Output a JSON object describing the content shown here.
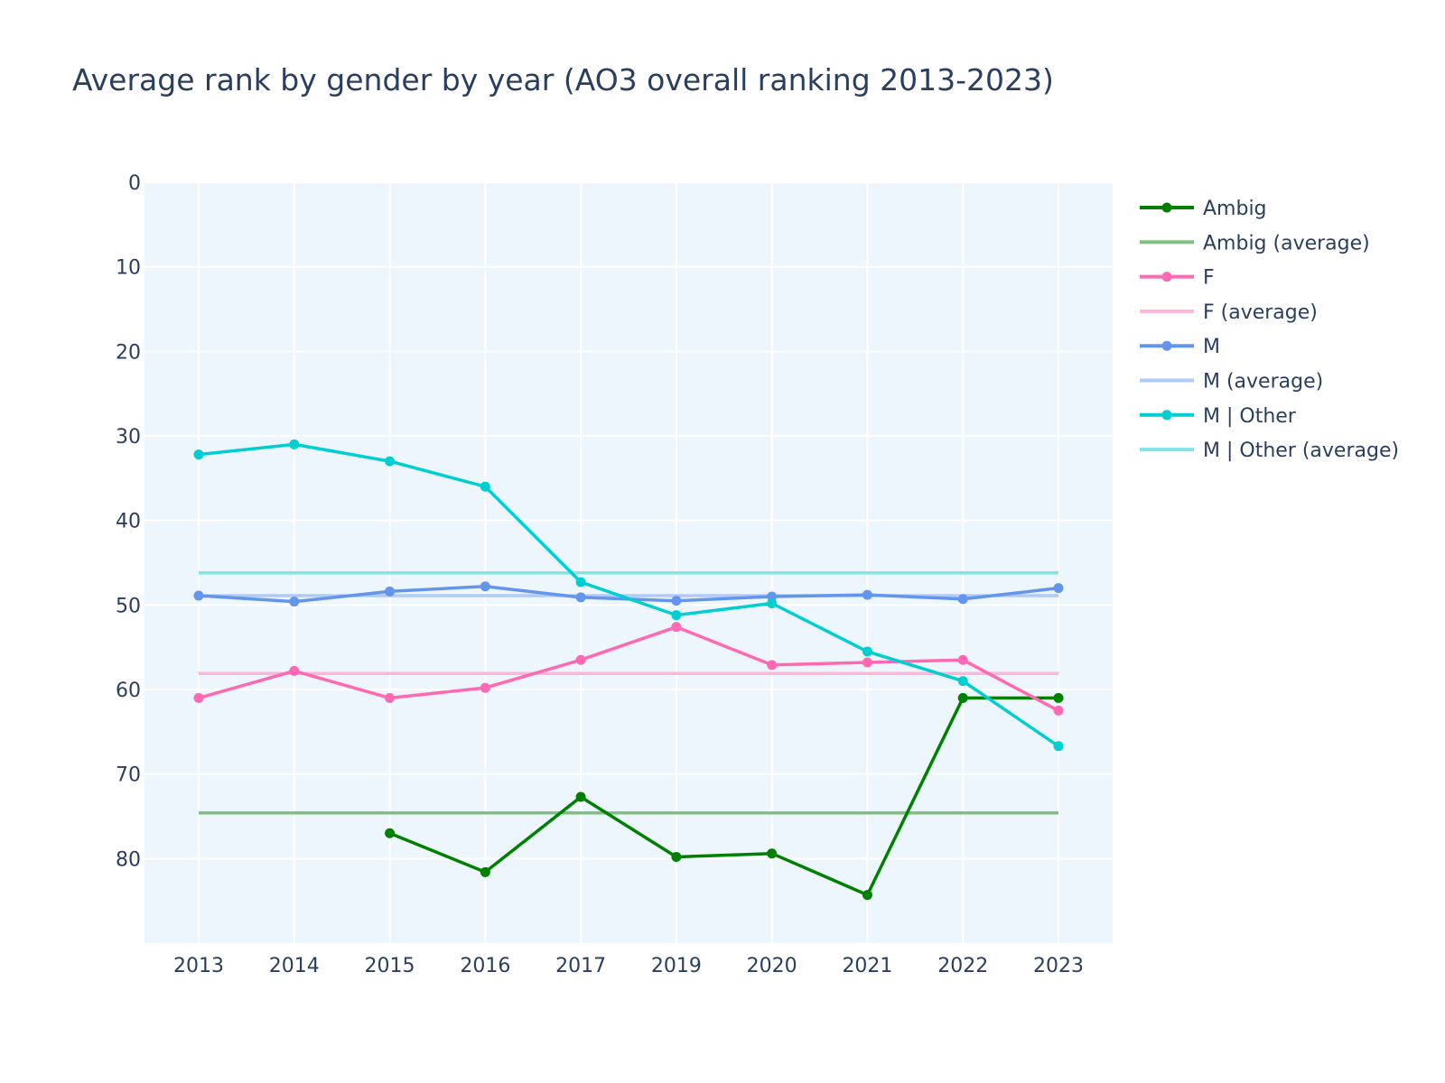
{
  "chart_data": {
    "type": "line",
    "title": "Average rank by gender by year (AO3 overall ranking 2013-2023)",
    "xlabel": "",
    "ylabel": "",
    "categories": [
      "2013",
      "2014",
      "2015",
      "2016",
      "2017",
      "2019",
      "2020",
      "2021",
      "2022",
      "2023"
    ],
    "y_reversed": true,
    "ylim": [
      90,
      0
    ],
    "y_ticks": [
      0,
      10,
      20,
      30,
      40,
      50,
      60,
      70,
      80
    ],
    "grid": true,
    "legend_position": "right",
    "plot_background": "#eef6fd",
    "series": [
      {
        "name": "Ambig",
        "color": "#008000",
        "mode": "lines+markers",
        "values": [
          null,
          null,
          77.0,
          81.6,
          72.7,
          79.8,
          79.4,
          84.3,
          61.0,
          61.0
        ]
      },
      {
        "name": "Ambig (average)",
        "color": "#7fbf7f",
        "mode": "lines",
        "values": [
          74.6,
          74.6,
          74.6,
          74.6,
          74.6,
          74.6,
          74.6,
          74.6,
          74.6,
          74.6
        ]
      },
      {
        "name": "F",
        "color": "#ff69b4",
        "mode": "lines+markers",
        "values": [
          61.0,
          57.8,
          61.0,
          59.8,
          56.5,
          52.6,
          57.1,
          56.8,
          56.5,
          62.5
        ]
      },
      {
        "name": "F (average)",
        "color": "#ffb4da",
        "mode": "lines",
        "values": [
          58.1,
          58.1,
          58.1,
          58.1,
          58.1,
          58.1,
          58.1,
          58.1,
          58.1,
          58.1
        ]
      },
      {
        "name": "M",
        "color": "#6495ed",
        "mode": "lines+markers",
        "values": [
          48.9,
          49.6,
          48.4,
          47.8,
          49.1,
          49.5,
          49.0,
          48.8,
          49.3,
          48.0
        ]
      },
      {
        "name": "M (average)",
        "color": "#b1caf6",
        "mode": "lines",
        "values": [
          48.9,
          48.9,
          48.9,
          48.9,
          48.9,
          48.9,
          48.9,
          48.9,
          48.9,
          48.9
        ]
      },
      {
        "name": "M | Other",
        "color": "#00ced1",
        "mode": "lines+markers",
        "values": [
          32.2,
          31.0,
          33.0,
          36.0,
          47.3,
          51.2,
          49.8,
          55.5,
          59.0,
          66.7
        ]
      },
      {
        "name": "M | Other (average)",
        "color": "#7fe6e8",
        "mode": "lines",
        "values": [
          46.2,
          46.2,
          46.2,
          46.2,
          46.2,
          46.2,
          46.2,
          46.2,
          46.2,
          46.2
        ]
      }
    ]
  }
}
